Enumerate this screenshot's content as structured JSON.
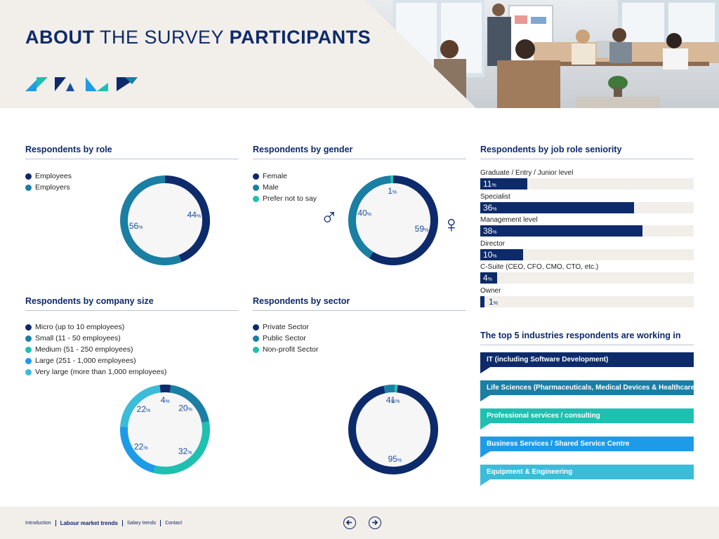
{
  "header": {
    "title_part1": "ABOUT",
    "title_part2": "THE SURVEY",
    "title_part3": "PARTICIPANTS"
  },
  "colors": {
    "navy": "#0d2a6b",
    "blue_mid": "#1a4fa0",
    "teal_dark": "#1a7fa3",
    "teal": "#1fc0b0",
    "sky": "#1e9be8",
    "cyan": "#3bbcd9",
    "beige": "#f2eeea"
  },
  "icons": {
    "male": "♂",
    "female": "♀",
    "prev": "prev-arrow-icon",
    "next": "next-arrow-icon"
  },
  "percent_sign": "%",
  "chart_data": [
    {
      "type": "pie",
      "title": "Respondents by role",
      "categories": [
        "Employees",
        "Employers"
      ],
      "values": [
        44,
        56
      ],
      "colors": [
        "#0d2a6b",
        "#1a7fa3"
      ]
    },
    {
      "type": "pie",
      "title": "Respondents by gender",
      "categories": [
        "Female",
        "Male",
        "Prefer not to say"
      ],
      "values": [
        59,
        40,
        1
      ],
      "colors": [
        "#0d2a6b",
        "#1a7fa3",
        "#1fc0b0"
      ]
    },
    {
      "type": "bar",
      "title": "Respondents by job role seniority",
      "categories": [
        "Graduate / Entry / Junior level",
        "Specialist",
        "Management level",
        "Director",
        "C-Suite (CEO, CFO, CMO, CTO, etc.)",
        "Owner"
      ],
      "values": [
        11,
        36,
        38,
        10,
        4,
        1
      ],
      "xlim": [
        0,
        50
      ]
    },
    {
      "type": "pie",
      "title": "Respondents by company size",
      "categories": [
        "Micro (up to 10 employees)",
        "Small (11 - 50 employees)",
        "Medium (51 - 250 employees)",
        "Large (251 - 1,000 employees)",
        "Very large (more than 1,000 employees)"
      ],
      "values": [
        4,
        20,
        32,
        22,
        22
      ],
      "colors": [
        "#0d2a6b",
        "#1a7fa3",
        "#1fc0b0",
        "#1e9be8",
        "#3bbcd9"
      ]
    },
    {
      "type": "pie",
      "title": "Respondents by sector",
      "categories": [
        "Private Sector",
        "Public Sector",
        "Non-profit Sector"
      ],
      "values": [
        95,
        4,
        1
      ],
      "colors": [
        "#0d2a6b",
        "#1a7fa3",
        "#1fc0b0"
      ]
    }
  ],
  "industries": {
    "title": "The top 5 industries respondents are working in",
    "items": [
      {
        "label": "IT (including Software Development)",
        "color": "#0d2a6b"
      },
      {
        "label": "Life Sciences (Pharmaceuticals, Medical Devices & Healthcare)",
        "color": "#1a7fa3"
      },
      {
        "label": "Professional services / consulting",
        "color": "#1fc0b0"
      },
      {
        "label": "Business Services / Shared Service Centre",
        "color": "#1e9be8"
      },
      {
        "label": "Equipment & Engineering",
        "color": "#3bbcd9"
      }
    ]
  },
  "footer": {
    "nav": [
      "Introduction",
      "Labour market trends",
      "Salary trends",
      "Contact"
    ],
    "active_index": 1
  }
}
